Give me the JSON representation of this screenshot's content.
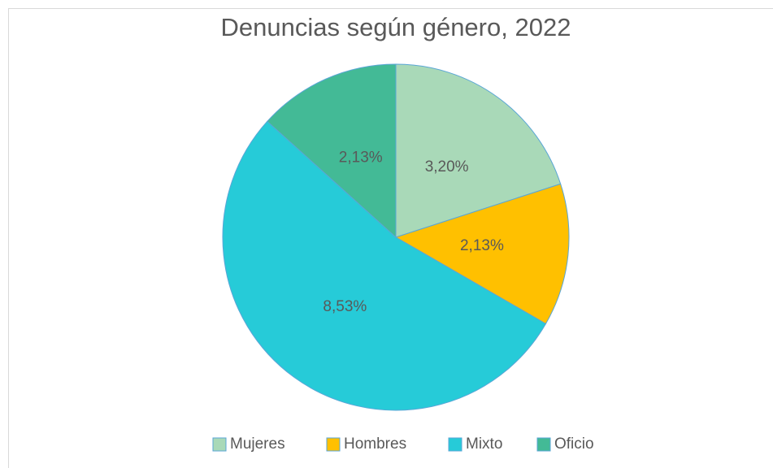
{
  "chart_data": {
    "type": "pie",
    "title": "Denuncias según género, 2022",
    "categories": [
      "Mujeres",
      "Hombres",
      "Mixto",
      "Oficio"
    ],
    "values": [
      3.2,
      2.13,
      8.53,
      2.13
    ],
    "value_labels": [
      "3,20%",
      "2,13%",
      "8,53%",
      "2,13%"
    ],
    "colors": [
      "#a9d9b8",
      "#ffc000",
      "#26cbd8",
      "#43ba96"
    ],
    "legend": "bottom"
  }
}
